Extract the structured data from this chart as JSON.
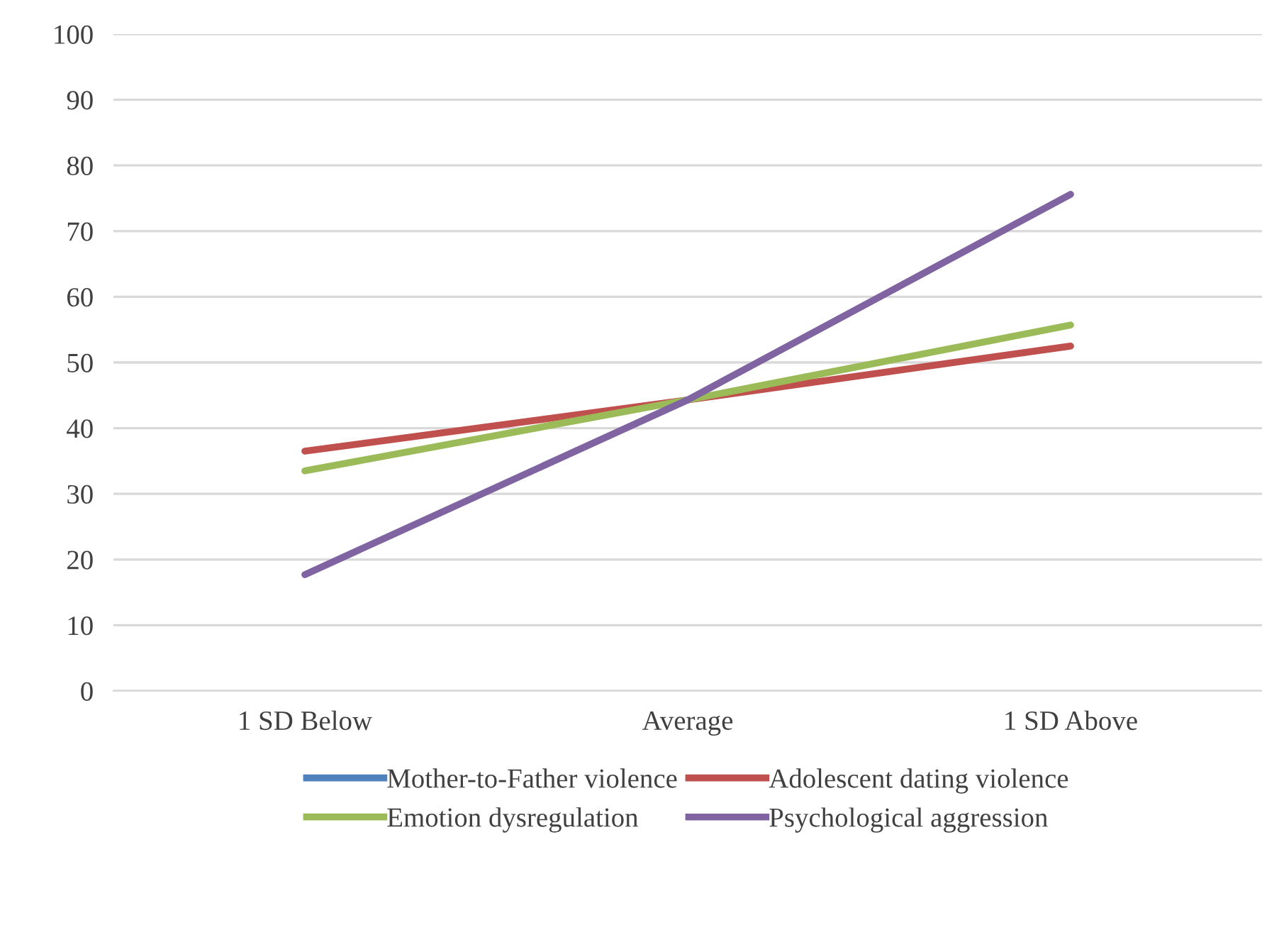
{
  "chart_data": {
    "type": "line",
    "categories": [
      "1 SD Below",
      "Average",
      "1 SD Above"
    ],
    "series": [
      {
        "name": "Mother-to-Father violence",
        "color": "#4f81bd",
        "values": [
          null,
          null,
          null
        ]
      },
      {
        "name": "Adolescent dating violence",
        "color": "#c0504d",
        "values": [
          36.5,
          44.3,
          52.5
        ]
      },
      {
        "name": "Emotion dysregulation",
        "color": "#9bbb59",
        "values": [
          33.5,
          44.3,
          55.7
        ]
      },
      {
        "name": "Psychological aggression",
        "color": "#8064a2",
        "values": [
          17.7,
          44.3,
          75.6
        ]
      }
    ],
    "ylim": [
      0,
      100
    ],
    "yticks": [
      0,
      10,
      20,
      30,
      40,
      50,
      60,
      70,
      80,
      90,
      100
    ],
    "grid": "y",
    "legend": "bottom",
    "marker": "none",
    "line_style": "solid"
  }
}
